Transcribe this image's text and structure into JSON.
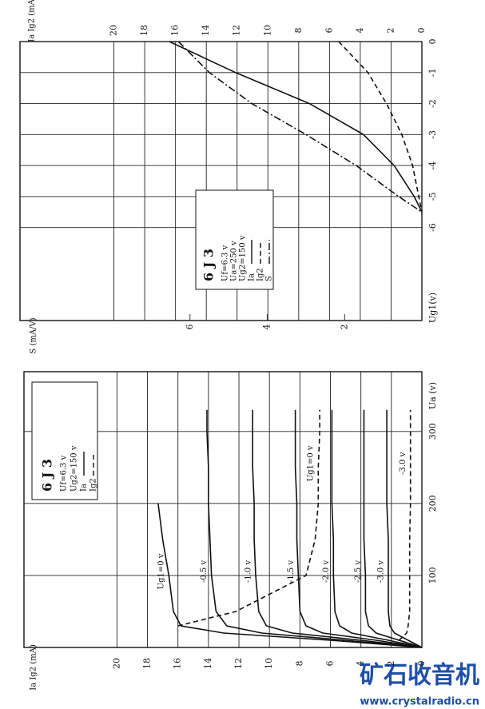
{
  "chart_data": [
    {
      "type": "line",
      "x_label": "Ug1(v)",
      "y_label": "Ia Ig2 (mA)",
      "y2_label": "S (mA/V)",
      "annotations": [
        "6 J 3",
        "Uf=6.3 v",
        "Ua=250 v",
        "Ug2=150 v"
      ],
      "x": [
        0,
        -1,
        -2,
        -3,
        -4,
        -5,
        -5.5
      ],
      "series": [
        {
          "name": "Ia",
          "color": "#111111",
          "dash": "solid",
          "values": [
            16.4,
            12.1,
            7.3,
            3.8,
            1.8,
            0.5,
            0
          ]
        },
        {
          "name": "Ig2",
          "color": "#111111",
          "dash": "dashed",
          "values": [
            5.4,
            3.5,
            2.3,
            1.3,
            0.6,
            0.2,
            0
          ]
        },
        {
          "name": "S",
          "color": "#111111",
          "dash": "dashdot",
          "axis": "y2",
          "values": [
            6.3,
            5.5,
            4.4,
            3.0,
            1.7,
            0.6,
            0
          ]
        }
      ],
      "xlim": [
        0,
        -9
      ],
      "xticks": [
        0,
        -1,
        -2,
        -3,
        -4,
        -5,
        -6
      ],
      "ylim": [
        0,
        26.1
      ],
      "yticks": [
        0,
        2,
        4,
        6,
        8,
        10,
        12,
        14,
        16,
        18,
        20
      ],
      "y2lim": [
        0,
        10.4
      ],
      "y2ticks": [
        2,
        4,
        6
      ],
      "grid": true
    },
    {
      "type": "line",
      "x_label": "Ua (v)",
      "y_label": "Ia Ig2 (mA)",
      "annotations": [
        "6 J 3",
        "Uf=6.3 v",
        "Ug2=150 v"
      ],
      "legend": [
        "Ia",
        "Ig2"
      ],
      "x": [
        0,
        10,
        20,
        30,
        50,
        100,
        150,
        200,
        250,
        300,
        330
      ],
      "series": [
        {
          "name": "Ug1=0 v",
          "color": "#111111",
          "dash": "solid",
          "values": [
            0,
            6,
            13,
            15.8,
            16.3,
            16.6,
            17.0,
            17.3,
            null,
            null,
            null
          ]
        },
        {
          "name": "-0.5 v",
          "color": "#111111",
          "dash": "solid",
          "values": [
            0,
            5,
            10.5,
            12.8,
            13.5,
            13.8,
            13.9,
            14.0,
            14.0,
            14.1,
            14.1
          ]
        },
        {
          "name": "-1.0 v",
          "color": "#111111",
          "dash": "solid",
          "values": [
            0,
            4,
            8.5,
            10.2,
            10.7,
            10.9,
            11.0,
            11.0,
            11.1,
            11.1,
            11.1
          ]
        },
        {
          "name": "-1.5 v",
          "color": "#111111",
          "dash": "solid",
          "values": [
            0,
            3,
            6.5,
            7.6,
            8.0,
            8.1,
            8.2,
            8.2,
            8.3,
            8.3,
            8.3
          ]
        },
        {
          "name": "-2.0 v",
          "color": "#111111",
          "dash": "solid",
          "values": [
            0,
            2.2,
            4.6,
            5.4,
            5.7,
            5.8,
            5.8,
            5.9,
            5.9,
            5.9,
            5.9
          ]
        },
        {
          "name": "-2.5 v",
          "color": "#111111",
          "dash": "solid",
          "values": [
            0,
            1.5,
            3.0,
            3.5,
            3.7,
            3.7,
            3.8,
            3.8,
            3.8,
            3.8,
            3.8
          ]
        },
        {
          "name": "-3.0 v",
          "color": "#111111",
          "dash": "solid",
          "values": [
            0,
            0.9,
            1.8,
            2.1,
            2.2,
            2.2,
            2.2,
            2.3,
            2.3,
            2.3,
            2.3
          ]
        },
        {
          "name": "Ug1=0 v",
          "color": "#111111",
          "dash": "dashed",
          "values": [
            null,
            null,
            null,
            16,
            12.2,
            7.6,
            7.0,
            6.8,
            6.8,
            6.7,
            6.7
          ]
        },
        {
          "name": "-3.0 v",
          "color": "#111111",
          "dash": "dashed",
          "values": [
            0,
            1.5,
            1.0,
            0.9,
            0.8,
            0.8,
            0.8,
            0.75,
            0.75,
            0.75,
            0.75
          ]
        }
      ],
      "xlim": [
        0,
        383
      ],
      "xticks": [
        100,
        200,
        300
      ],
      "ylim": [
        0,
        26.1
      ],
      "yticks": [
        0,
        2,
        4,
        6,
        8,
        10,
        12,
        14,
        16,
        18,
        20
      ],
      "grid": true
    }
  ],
  "watermark": {
    "title": "矿石收音机",
    "url": "www.crystalradio.cn"
  }
}
